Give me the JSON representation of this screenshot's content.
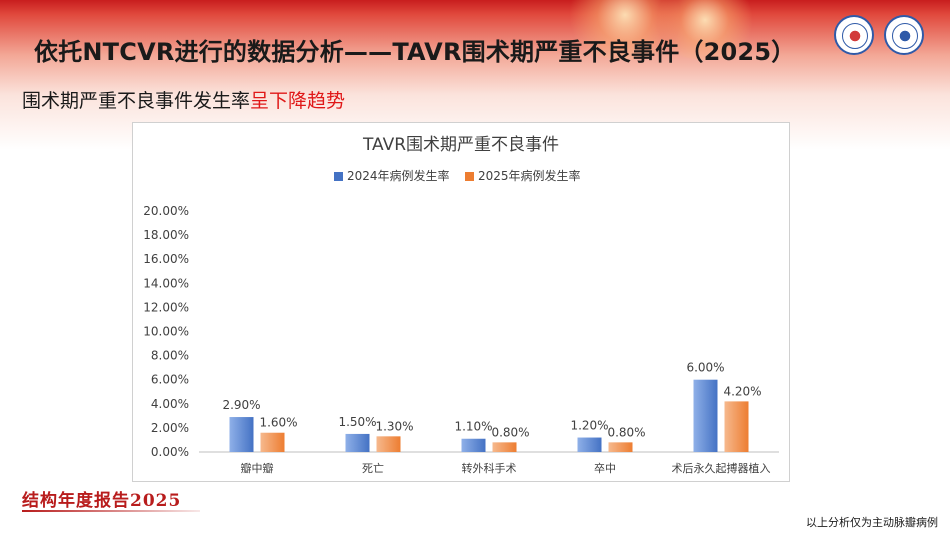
{
  "slide": {
    "title": "依托NTCVR进行的数据分析——TAVR围术期严重不良事件（2025）",
    "subtitle_plain": "围术期严重不良事件发生率",
    "subtitle_highlight": "呈下降趋势",
    "report_label": "结构年度报告2025",
    "footnote": "以上分析仅为主动脉瓣病例"
  },
  "colors": {
    "series_2024": "#4472c4",
    "series_2025": "#ed7d31",
    "highlight": "#e01818"
  },
  "chart_data": {
    "type": "bar",
    "title": "TAVR围术期严重不良事件",
    "categories": [
      "瓣中瓣",
      "死亡",
      "转外科手术",
      "卒中",
      "术后永久起搏器植入"
    ],
    "series": [
      {
        "name": "2024年病例发生率",
        "values": [
          2.9,
          1.5,
          1.1,
          1.2,
          6.0
        ]
      },
      {
        "name": "2025年病例发生率",
        "values": [
          1.6,
          1.3,
          0.8,
          0.8,
          4.2
        ]
      }
    ],
    "value_labels": [
      [
        "2.90%",
        "1.50%",
        "1.10%",
        "1.20%",
        "6.00%"
      ],
      [
        "1.60%",
        "1.30%",
        "0.80%",
        "0.80%",
        "4.20%"
      ]
    ],
    "ylim": [
      0,
      20
    ],
    "y_ticks": [
      "0.00%",
      "2.00%",
      "4.00%",
      "6.00%",
      "8.00%",
      "10.00%",
      "12.00%",
      "14.00%",
      "16.00%",
      "18.00%",
      "20.00%"
    ],
    "legend_position": "top",
    "grid": false
  }
}
